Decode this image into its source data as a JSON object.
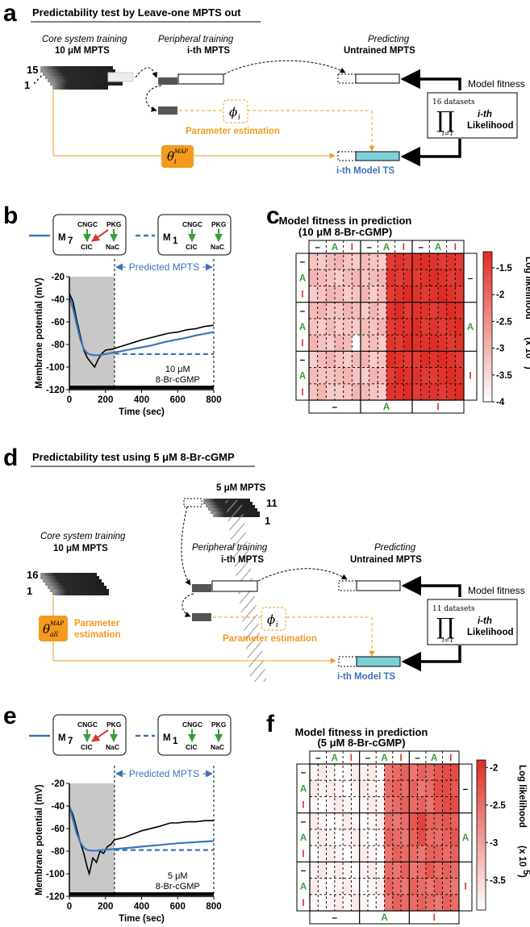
{
  "panel_labels": {
    "a": "a",
    "b": "b",
    "c": "c",
    "d": "d",
    "e": "e",
    "f": "f"
  },
  "panel_a": {
    "title": "Predictability test by Leave-one MPTS out",
    "core_title": "Core system training",
    "core_sub": "10 μM MPTS",
    "stack_top": "15",
    "stack_bottom": "1",
    "periph_title": "Peripheral training",
    "periph_sub": "i-th MPTS",
    "pred_title": "Predicting",
    "pred_sub": "Untrained MPTS",
    "param_symbol": "ϕ",
    "param_sub": "i",
    "param_est": "Parameter estimation",
    "theta": "θ",
    "theta_sup": "MAP",
    "theta_sub": "i",
    "model_ts": "i-th Model TS",
    "model_fitness": "Model fitness",
    "datasets": "16 datasets",
    "prod_index": "i=1",
    "likelihood_line1": "i-th",
    "likelihood_line2": "Likelihood"
  },
  "panel_b": {
    "model7": {
      "name": "M",
      "sub": "7",
      "cngc": "CNGC",
      "pkg": "PKG",
      "clc": "ClC",
      "nac": "NaC"
    },
    "model1": {
      "name": "M",
      "sub": "1",
      "cngc": "CNGC",
      "pkg": "PKG",
      "clc": "ClC",
      "nac": "NaC"
    },
    "predicted_label": "Predicted MPTS",
    "stim_line1": "10 μM",
    "stim_line2": "8-Br-cGMP",
    "chart_data": {
      "type": "line",
      "xlabel": "Time (sec)",
      "ylabel": "Membrane potential (mV)",
      "xlim": [
        0,
        800
      ],
      "ylim": [
        -120,
        -20
      ],
      "xticks": [
        0,
        200,
        400,
        600,
        800
      ],
      "yticks": [
        -20,
        -40,
        -60,
        -80,
        -100,
        -120
      ],
      "training_window": [
        0,
        250
      ],
      "series": [
        {
          "name": "data",
          "color": "#000000",
          "x": [
            0,
            20,
            40,
            60,
            80,
            100,
            120,
            140,
            160,
            180,
            200,
            240,
            280,
            320,
            360,
            400,
            450,
            500,
            550,
            600,
            650,
            700,
            750,
            800
          ],
          "y": [
            -35,
            -42,
            -58,
            -72,
            -85,
            -92,
            -96,
            -100,
            -93,
            -88,
            -85,
            -84,
            -82,
            -80,
            -78,
            -76,
            -74,
            -72,
            -70,
            -69,
            -67,
            -66,
            -64,
            -63
          ]
        },
        {
          "name": "M7",
          "color": "#3e73b8",
          "x": [
            0,
            20,
            40,
            60,
            80,
            100,
            120,
            140,
            160,
            180,
            200,
            250,
            300,
            350,
            400,
            450,
            500,
            550,
            600,
            650,
            700,
            750,
            800
          ],
          "y": [
            -38,
            -48,
            -62,
            -75,
            -84,
            -88,
            -89,
            -89.5,
            -89.5,
            -89,
            -88.5,
            -87,
            -85.5,
            -84,
            -82.5,
            -81,
            -79,
            -77,
            -75.5,
            -74,
            -72,
            -70.5,
            -69
          ]
        },
        {
          "name": "M1",
          "color": "#3e73b8",
          "dashed": true,
          "x": [
            250,
            300,
            400,
            500,
            600,
            700,
            800
          ],
          "y": [
            -88,
            -88.5,
            -88.5,
            -88.5,
            -88.5,
            -88.5,
            -88.5
          ]
        }
      ]
    }
  },
  "panel_c": {
    "title_line1": "Model fitness in prediction",
    "title_line2": "(10 μM 8-Br-cGMP)",
    "axis_symbols": [
      "–",
      "A",
      "I"
    ],
    "colorbar_label": "Log likelihood",
    "colorbar_scale": "(x 10",
    "colorbar_exp": "4",
    "colorbar_close": ")",
    "chart_data": {
      "type": "heatmap",
      "colorbar_ticks": [
        -1.5,
        -2,
        -2.5,
        -3,
        -3.5,
        -4
      ],
      "vmin": -4,
      "vmax": -1.2,
      "values": [
        [
          -3.2,
          -3.3,
          -3.1,
          -3.0,
          -3.2,
          -3.3,
          -3.1,
          -3.2,
          -3.3,
          -1.4,
          -1.3,
          -1.4,
          -1.3,
          -1.2,
          -1.3,
          -1.4,
          -1.3,
          -1.4
        ],
        [
          -3.0,
          -3.1,
          -3.2,
          -3.3,
          -3.1,
          -3.0,
          -3.2,
          -3.1,
          -3.0,
          -1.3,
          -1.4,
          -1.3,
          -1.4,
          -1.3,
          -1.2,
          -1.3,
          -1.4,
          -1.3
        ],
        [
          -3.3,
          -3.2,
          -3.0,
          -3.1,
          -3.3,
          -3.2,
          -3.0,
          -3.3,
          -3.1,
          -1.4,
          -1.3,
          -1.2,
          -1.3,
          -1.4,
          -1.3,
          -1.2,
          -1.3,
          -1.4
        ],
        [
          -3.1,
          -3.0,
          -3.2,
          -3.2,
          -3.0,
          -3.1,
          -3.3,
          -3.0,
          -3.2,
          -1.3,
          -1.2,
          -1.4,
          -1.3,
          -1.3,
          -1.4,
          -1.3,
          -1.2,
          -1.3
        ],
        [
          -3.2,
          -3.3,
          -3.1,
          -3.3,
          -3.2,
          -3.3,
          -3.1,
          -3.2,
          -3.0,
          -1.4,
          -1.3,
          -1.3,
          -1.2,
          -1.4,
          -1.3,
          -1.4,
          -1.3,
          -1.2
        ],
        [
          -3.0,
          -3.2,
          -3.3,
          -3.0,
          -3.1,
          -4.0,
          -3.2,
          -3.1,
          -3.3,
          -1.3,
          -1.4,
          -1.2,
          -1.3,
          -1.3,
          -1.2,
          -1.3,
          -1.4,
          -1.3
        ],
        [
          -3.3,
          -3.1,
          -3.0,
          -3.2,
          -3.3,
          -3.1,
          -3.0,
          -3.3,
          -3.2,
          -1.2,
          -1.3,
          -1.4,
          -1.4,
          -1.2,
          -1.3,
          -1.2,
          -1.3,
          -1.4
        ],
        [
          -3.1,
          -3.2,
          -3.2,
          -3.1,
          -3.0,
          -3.2,
          -3.3,
          -3.0,
          -3.1,
          -1.4,
          -1.2,
          -1.3,
          -1.3,
          -1.4,
          -1.4,
          -1.3,
          -1.2,
          -1.3
        ],
        [
          -3.2,
          -3.0,
          -3.3,
          -3.3,
          -3.2,
          -3.0,
          -3.1,
          -3.2,
          -3.3,
          -1.3,
          -1.3,
          -1.2,
          -1.4,
          -1.3,
          -1.3,
          -1.4,
          -1.3,
          -1.2
        ]
      ]
    }
  },
  "panel_d": {
    "title": "Predictability test using 5 μM 8-Br-cGMP",
    "five_label": "5 μM MPTS",
    "stack5_top": "11",
    "stack5_bottom": "1",
    "core_title": "Core system training",
    "core_sub": "10 μM MPTS",
    "stack_top": "16",
    "stack_bottom": "1",
    "periph_title": "Peripheral training",
    "periph_sub": "i-th MPTS",
    "pred_title": "Predicting",
    "pred_sub": "Untrained MPTS",
    "param_symbol": "ϕ",
    "param_sub": "i",
    "param_est": "Parameter estimation",
    "theta": "θ",
    "theta_sup": "MAP",
    "theta_sub": "all",
    "param_est_left1": "Parameter",
    "param_est_left2": "estimation",
    "model_ts": "i-th Model TS",
    "model_fitness": "Model fitness",
    "datasets": "11 datasets",
    "prod_index": "i=1",
    "likelihood_line1": "i-th",
    "likelihood_line2": "Likelihood"
  },
  "panel_e": {
    "model7": {
      "name": "M",
      "sub": "7",
      "cngc": "CNGC",
      "pkg": "PKG",
      "clc": "ClC",
      "nac": "NaC"
    },
    "model1": {
      "name": "M",
      "sub": "1",
      "cngc": "CNGC",
      "pkg": "PKG",
      "clc": "ClC",
      "nac": "NaC"
    },
    "predicted_label": "Predicted MPTS",
    "stim_line1": "5 μM",
    "stim_line2": "8-Br-cGMP",
    "chart_data": {
      "type": "line",
      "xlabel": "Time (sec)",
      "ylabel": "Membrane potential (mV)",
      "xlim": [
        0,
        800
      ],
      "ylim": [
        -120,
        -20
      ],
      "xticks": [
        0,
        200,
        400,
        600,
        800
      ],
      "yticks": [
        -20,
        -40,
        -60,
        -80,
        -100,
        -120
      ],
      "training_window": [
        0,
        250
      ],
      "series": [
        {
          "name": "data",
          "color": "#000000",
          "x": [
            0,
            20,
            40,
            60,
            80,
            100,
            110,
            130,
            150,
            170,
            190,
            210,
            230,
            250,
            300,
            400,
            500,
            560,
            600,
            650,
            700,
            750,
            800
          ],
          "y": [
            -40,
            -48,
            -60,
            -72,
            -82,
            -95,
            -100,
            -86,
            -90,
            -80,
            -82,
            -76,
            -74,
            -70,
            -68,
            -62,
            -58,
            -55,
            -55,
            -54,
            -54,
            -53,
            -53
          ]
        },
        {
          "name": "M7",
          "color": "#3e73b8",
          "x": [
            0,
            20,
            40,
            60,
            80,
            100,
            120,
            150,
            180,
            220,
            260,
            300,
            400,
            500,
            600,
            700,
            800
          ],
          "y": [
            -40,
            -52,
            -64,
            -72,
            -77,
            -79,
            -79.5,
            -79.5,
            -79,
            -78.5,
            -78,
            -77.5,
            -76,
            -74.5,
            -73,
            -72,
            -71
          ]
        },
        {
          "name": "M1",
          "color": "#3e73b8",
          "dashed": true,
          "x": [
            250,
            300,
            400,
            500,
            600,
            700,
            800
          ],
          "y": [
            -79,
            -79,
            -79,
            -79,
            -79,
            -79,
            -79
          ]
        }
      ]
    }
  },
  "panel_f": {
    "title_line1": "Model fitness in prediction",
    "title_line2": "(5 μM 8-Br-cGMP)",
    "axis_symbols": [
      "–",
      "A",
      "I"
    ],
    "colorbar_label": "Log likelihood",
    "colorbar_scale": "(x 10",
    "colorbar_exp": "5",
    "colorbar_close": ")",
    "chart_data": {
      "type": "heatmap",
      "colorbar_ticks": [
        -2,
        -2.5,
        -3,
        -3.5
      ],
      "vmin": -3.9,
      "vmax": -1.9,
      "values": [
        [
          -3.8,
          -3.7,
          -3.8,
          -3.9,
          -3.8,
          -3.7,
          -3.8,
          -3.7,
          -3.9,
          -2.6,
          -2.5,
          -2.4,
          -2.6,
          -2.4,
          -2.5,
          -2.3,
          -2.2,
          -2.2
        ],
        [
          -3.7,
          -3.8,
          -3.7,
          -3.8,
          -3.9,
          -3.8,
          -3.7,
          -3.8,
          -3.8,
          -2.5,
          -2.4,
          -2.5,
          -2.4,
          -2.6,
          -2.5,
          -2.2,
          -2.2,
          -2.3
        ],
        [
          -3.8,
          -3.9,
          -3.8,
          -3.7,
          -3.8,
          -3.9,
          -3.8,
          -3.7,
          -3.8,
          -2.6,
          -2.5,
          -2.4,
          -2.5,
          -2.4,
          -2.6,
          -2.3,
          -2.2,
          -2.2
        ],
        [
          -3.7,
          -3.8,
          -3.9,
          -3.8,
          -3.7,
          -3.8,
          -3.9,
          -3.8,
          -3.7,
          -2.5,
          -2.6,
          -2.5,
          -2.3,
          -2.1,
          -2.4,
          -2.4,
          -2.3,
          -2.4
        ],
        [
          -3.8,
          -3.7,
          -3.8,
          -3.9,
          -3.8,
          -3.7,
          -3.8,
          -3.9,
          -3.8,
          -2.4,
          -2.5,
          -2.6,
          -2.4,
          -2.2,
          -2.5,
          -2.5,
          -2.4,
          -2.3
        ],
        [
          -3.9,
          -3.8,
          -3.7,
          -3.8,
          -3.9,
          -3.8,
          -3.7,
          -3.8,
          -3.9,
          -2.6,
          -2.4,
          -2.5,
          -2.5,
          -2.6,
          -2.4,
          -2.4,
          -2.5,
          -2.4
        ],
        [
          -3.8,
          -3.7,
          -3.8,
          -3.7,
          -3.8,
          -3.9,
          -3.8,
          -3.7,
          -3.8,
          -2.5,
          -2.6,
          -2.4,
          -2.6,
          -2.5,
          -2.3,
          -2.5,
          -2.4,
          -2.5
        ],
        [
          -3.7,
          -3.8,
          -3.9,
          -3.8,
          -3.7,
          -3.8,
          -3.9,
          -3.8,
          -3.7,
          -2.4,
          -2.5,
          -2.6,
          -2.4,
          -2.5,
          -2.6,
          -2.4,
          -2.5,
          -2.6
        ],
        [
          -3.8,
          -3.9,
          -3.8,
          -3.7,
          -3.8,
          -3.7,
          -3.8,
          -3.9,
          -3.8,
          -2.6,
          -2.4,
          -2.5,
          -2.5,
          -2.4,
          -2.5,
          -2.6,
          -2.4,
          -2.5
        ]
      ]
    }
  }
}
